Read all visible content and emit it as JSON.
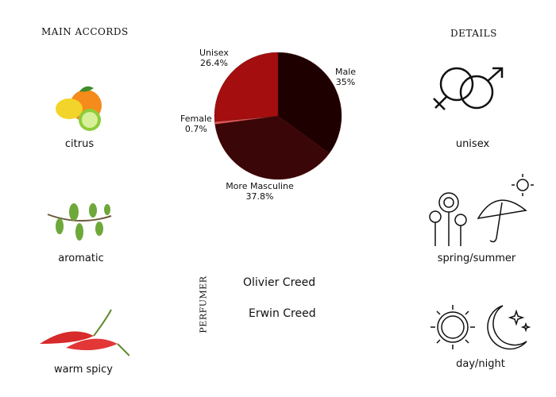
{
  "accords": {
    "title": "MAIN ACCORDS",
    "items": [
      {
        "label": "citrus",
        "icon": "citrus-fruit-icon"
      },
      {
        "label": "aromatic",
        "icon": "herb-sprig-icon"
      },
      {
        "label": "warm spicy",
        "icon": "chili-pepper-icon"
      }
    ]
  },
  "details": {
    "title": "DETAILS",
    "items": [
      {
        "label": "unisex",
        "icon": "gender-symbols-icon"
      },
      {
        "label": "spring/summer",
        "icon": "flowers-umbrella-sun-icon"
      },
      {
        "label": "day/night",
        "icon": "sun-moon-icon"
      }
    ]
  },
  "perfumer": {
    "title": "PERFUMER",
    "names": [
      "Olivier Creed",
      "Erwin Creed"
    ]
  },
  "chart_data": {
    "type": "pie",
    "start": "top, clockwise",
    "slices": [
      {
        "name": "Male",
        "label": "Male",
        "value_label": "35%",
        "value": 35,
        "color": "#1e0000"
      },
      {
        "name": "More Masculine",
        "label": "More Masculine",
        "value_label": "37.8%",
        "value": 37.8,
        "color": "#3a0607"
      },
      {
        "name": "Female",
        "label": "Female",
        "value_label": "0.7%",
        "value": 0.7,
        "color": "#e05555"
      },
      {
        "name": "Unisex",
        "label": "Unisex",
        "value_label": "26.4%",
        "value": 26.4,
        "color": "#a50e0e"
      }
    ]
  }
}
